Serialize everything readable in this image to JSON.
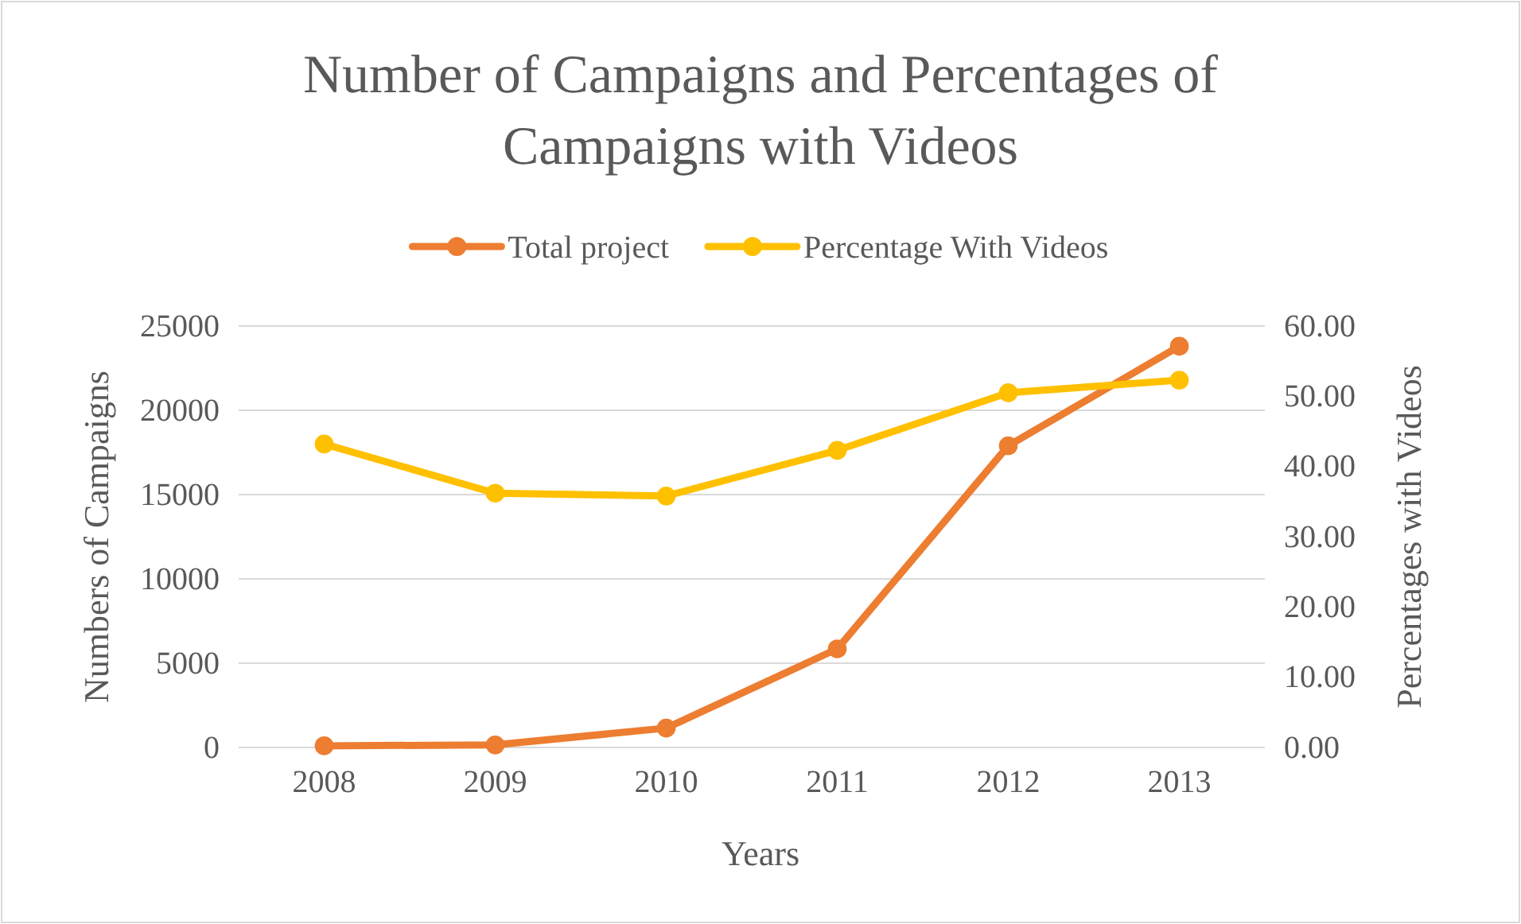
{
  "chart_data": {
    "type": "line",
    "title": "Number of Campaigns and Percentages of Campaigns with Videos",
    "xlabel": "Years",
    "ylabel": "Numbers of Campaigns",
    "y2label": "Percentages with Videos",
    "categories": [
      "2008",
      "2009",
      "2010",
      "2011",
      "2012",
      "2013"
    ],
    "series": [
      {
        "name": "Total project",
        "color": "#ed7d31",
        "values": [
          100,
          150,
          1150,
          5850,
          17900,
          23800
        ]
      },
      {
        "name": "Percentage With Videos",
        "color": "#ffc000",
        "axis": "y2",
        "values": [
          43.2,
          36.2,
          35.8,
          42.3,
          50.5,
          52.3
        ]
      }
    ],
    "ylim": [
      0,
      25000
    ],
    "yticks": [
      0,
      5000,
      10000,
      15000,
      20000,
      25000
    ],
    "y2lim": [
      0,
      60
    ],
    "y2ticks": [
      {
        "value": 0,
        "label": "0.00"
      },
      {
        "value": 10,
        "label": "10.00"
      },
      {
        "value": 20,
        "label": "20.00"
      },
      {
        "value": 30,
        "label": "30.00"
      },
      {
        "value": 40,
        "label": "40.00"
      },
      {
        "value": 50,
        "label": "50.00"
      },
      {
        "value": 60,
        "label": "60.00"
      }
    ],
    "grid": "y",
    "legend": "top",
    "marker": "circle",
    "line_style": "solid"
  }
}
